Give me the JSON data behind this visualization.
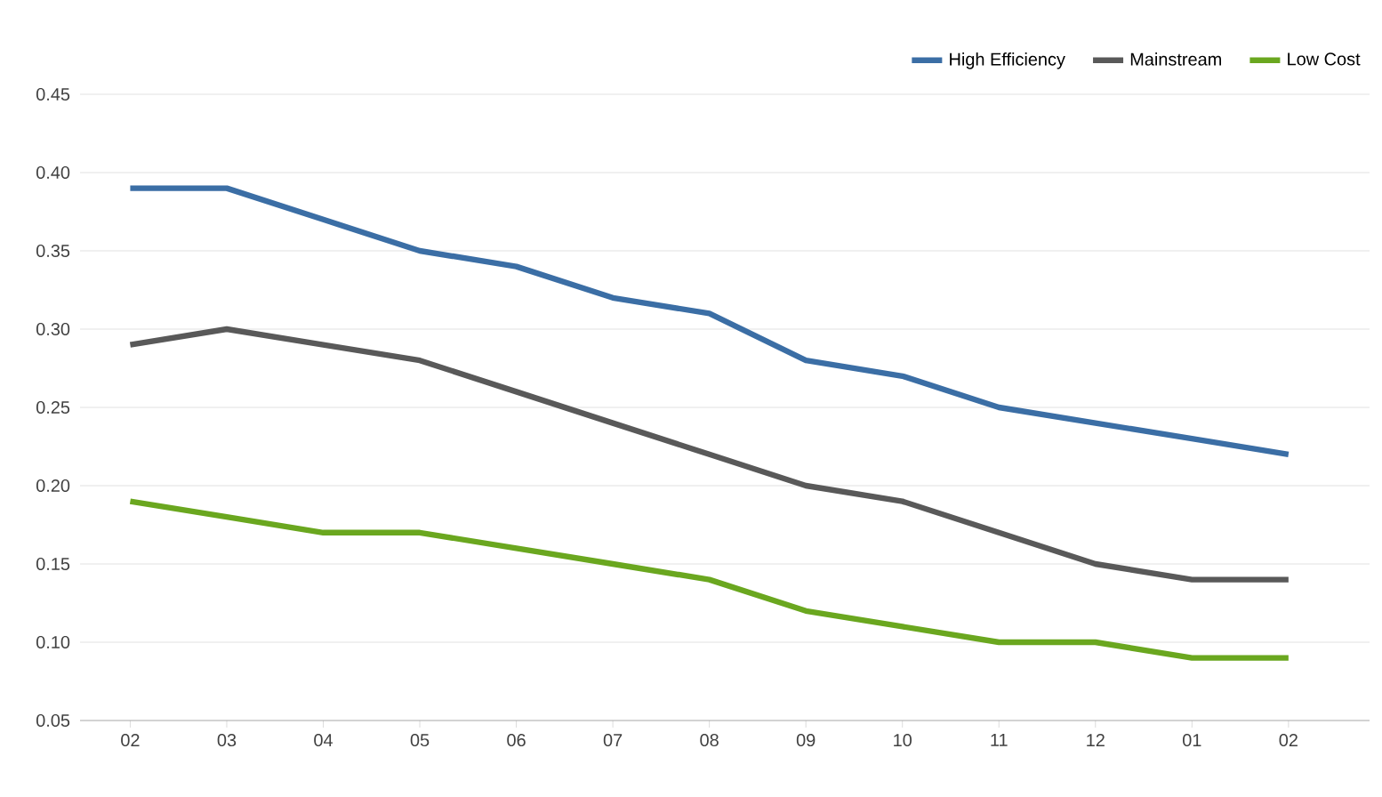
{
  "chart_data": {
    "type": "line",
    "categories": [
      "02",
      "03",
      "04",
      "05",
      "06",
      "07",
      "08",
      "09",
      "10",
      "11",
      "12",
      "01",
      "02"
    ],
    "series": [
      {
        "name": "High Efficiency",
        "color": "#3b6ea5",
        "values": [
          0.39,
          0.39,
          0.37,
          0.35,
          0.34,
          0.32,
          0.31,
          0.28,
          0.27,
          0.25,
          0.24,
          0.23,
          0.22
        ]
      },
      {
        "name": "Mainstream",
        "color": "#595959",
        "values": [
          0.29,
          0.3,
          0.29,
          0.28,
          0.26,
          0.24,
          0.22,
          0.2,
          0.19,
          0.17,
          0.15,
          0.14,
          0.14
        ]
      },
      {
        "name": "Low Cost",
        "color": "#6aa71f",
        "values": [
          0.19,
          0.18,
          0.17,
          0.17,
          0.16,
          0.15,
          0.14,
          0.12,
          0.11,
          0.1,
          0.1,
          0.09,
          0.09
        ]
      }
    ],
    "ylim": [
      0.05,
      0.45
    ],
    "yticks": [
      {
        "value": 0.05,
        "label": "0.05"
      },
      {
        "value": 0.1,
        "label": "0.10"
      },
      {
        "value": 0.15,
        "label": "0.15"
      },
      {
        "value": 0.2,
        "label": "0.20"
      },
      {
        "value": 0.25,
        "label": "0.25"
      },
      {
        "value": 0.3,
        "label": "0.30"
      },
      {
        "value": 0.35,
        "label": "0.35"
      },
      {
        "value": 0.4,
        "label": "0.40"
      },
      {
        "value": 0.45,
        "label": "0.45"
      }
    ],
    "grid": "y",
    "legend": "top right",
    "marker": "none",
    "line_style": "solid"
  }
}
